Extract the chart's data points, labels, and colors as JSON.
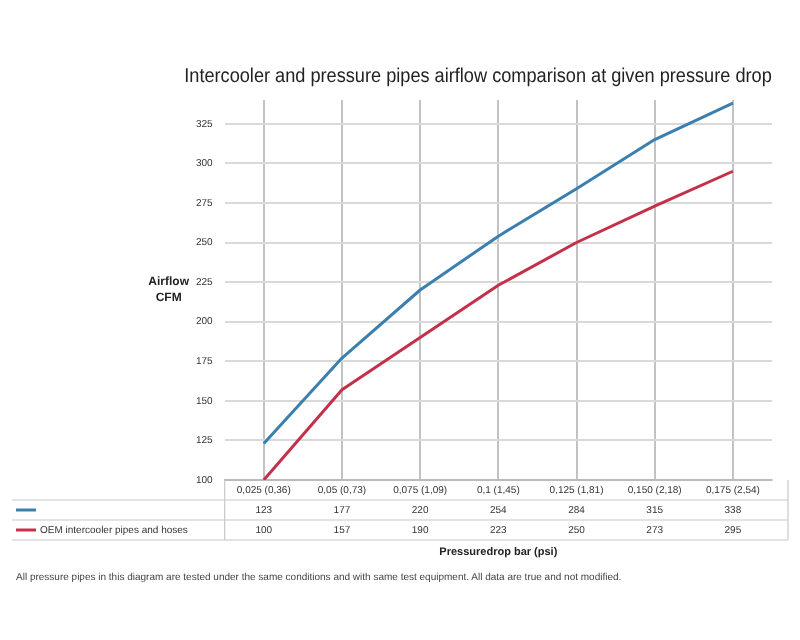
{
  "chart_data": {
    "type": "line",
    "title": "Intercooler and pressure pipes airflow comparison at given pressure drop",
    "xlabel": "Pressuredrop bar (psi)",
    "ylabel": "Airflow CFM",
    "categories": [
      "0,025 (0,36)",
      "0,05 (0,73)",
      "0,075 (1,09)",
      "0,1 (1,45)",
      "0,125 (1,81)",
      "0,150 (2,18)",
      "0,175 (2,54)"
    ],
    "series": [
      {
        "color": "#3b7fae",
        "values": [
          123,
          177,
          220,
          254,
          284,
          315,
          338
        ]
      },
      {
        "name": "OEM intercooler pipes and hoses",
        "color": "#c4304a",
        "values": [
          100,
          157,
          190,
          223,
          250,
          273,
          295
        ]
      }
    ],
    "ylim": [
      100,
      340
    ],
    "yticks": [
      100,
      125,
      150,
      175,
      200,
      225,
      250,
      275,
      300,
      325
    ],
    "grid": true,
    "legend": "bottom",
    "marker": "none",
    "data_labels": true,
    "annotations": [
      "All pressure pipes in this diagram are tested under the same conditions and with same test equipment. All data are true and not modified."
    ]
  }
}
